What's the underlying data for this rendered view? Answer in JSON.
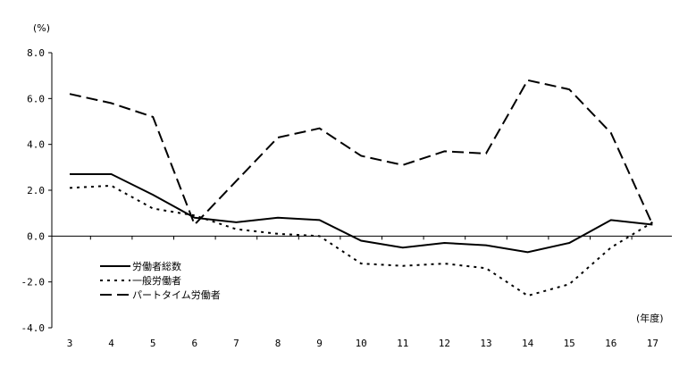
{
  "chart_data": {
    "type": "line",
    "title": "",
    "ylabel": "(%)",
    "xlabel": "(年度)",
    "ylim": [
      -4.0,
      8.0
    ],
    "y_ticks": [
      "8.0",
      "6.0",
      "4.0",
      "2.0",
      "0.0",
      "-2.0",
      "-4.0"
    ],
    "categories": [
      "3",
      "4",
      "5",
      "6",
      "7",
      "8",
      "9",
      "10",
      "11",
      "12",
      "13",
      "14",
      "15",
      "16",
      "17"
    ],
    "legend_position": "bottom-left",
    "grid": false,
    "series": [
      {
        "name": "労働者総数",
        "style": "solid",
        "values": [
          2.7,
          2.7,
          1.8,
          0.8,
          0.6,
          0.8,
          0.7,
          -0.2,
          -0.5,
          -0.3,
          -0.4,
          -0.7,
          -0.3,
          0.7,
          0.5
        ]
      },
      {
        "name": "一般労働者",
        "style": "dotted",
        "values": [
          2.1,
          2.2,
          1.2,
          0.9,
          0.3,
          0.1,
          0.0,
          -1.2,
          -1.3,
          -1.2,
          -1.4,
          -2.6,
          -2.1,
          -0.5,
          0.6
        ]
      },
      {
        "name": "パートタイム労働者",
        "style": "dashed",
        "values": [
          6.2,
          5.8,
          5.2,
          0.5,
          2.4,
          4.3,
          4.7,
          3.5,
          3.1,
          3.7,
          3.6,
          6.8,
          6.4,
          4.5,
          0.5
        ]
      }
    ]
  }
}
